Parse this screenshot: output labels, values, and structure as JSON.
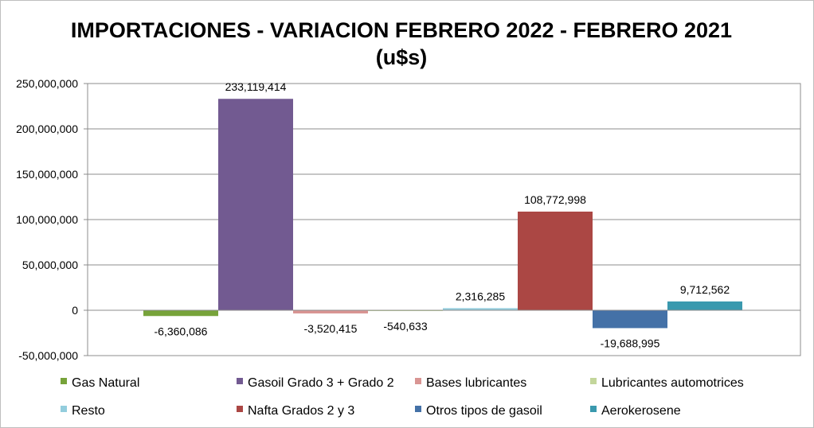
{
  "chart_data": {
    "type": "bar",
    "title_line1": "IMPORTACIONES - VARIACION FEBRERO 2022 - FEBRERO 2021",
    "title_line2": "(u$s)",
    "ylim": [
      -50000000,
      250000000
    ],
    "yticks": [
      {
        "value": 250000000,
        "label": "250,000,000"
      },
      {
        "value": 200000000,
        "label": "200,000,000"
      },
      {
        "value": 150000000,
        "label": "150,000,000"
      },
      {
        "value": 100000000,
        "label": "100,000,000"
      },
      {
        "value": 50000000,
        "label": "50,000,000"
      },
      {
        "value": 0,
        "label": "0"
      },
      {
        "value": -50000000,
        "label": "-50,000,000"
      }
    ],
    "series": [
      {
        "name": "Gas Natural",
        "value": -6360086,
        "label": "-6,360,086",
        "color": "#77a33a"
      },
      {
        "name": "Gasoil Grado 3 + Grado 2",
        "value": 233119414,
        "label": "233,119,414",
        "color": "#725a91"
      },
      {
        "name": "Bases lubricantes",
        "value": -3520415,
        "label": "-3,520,415",
        "color": "#d99593"
      },
      {
        "name": "Lubricantes automotrices",
        "value": -540633,
        "label": "-540,633",
        "color": "#c3d69b"
      },
      {
        "name": "Resto",
        "value": 2316285,
        "label": "2,316,285",
        "color": "#93cddd"
      },
      {
        "name": "Nafta Grados 2 y 3",
        "value": 108772998,
        "label": "108,772,998",
        "color": "#ab4744"
      },
      {
        "name": "Otros tipos de gasoil",
        "value": -19688995,
        "label": "-19,688,995",
        "color": "#4471a7"
      },
      {
        "name": "Aerokerosene",
        "value": 9712562,
        "label": "9,712,562",
        "color": "#3a99ae"
      }
    ]
  }
}
